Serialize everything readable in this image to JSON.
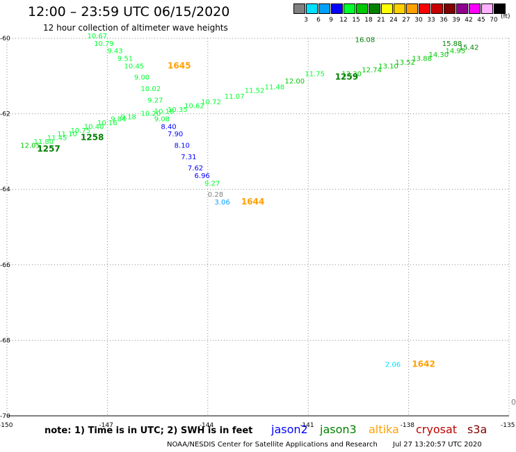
{
  "title": "12:00 – 23:59 UTC 06/15/2020",
  "subtitle": "12 hour collection of altimeter wave heights",
  "colorbar": {
    "unit": "(ft)",
    "swatches": [
      {
        "label": "",
        "color": "#808080"
      },
      {
        "label": "3",
        "color": "#00e0ff"
      },
      {
        "label": "6",
        "color": "#00a0ff"
      },
      {
        "label": "9",
        "color": "#0000ff"
      },
      {
        "label": "12",
        "color": "#00ff30"
      },
      {
        "label": "15",
        "color": "#00c800"
      },
      {
        "label": "18",
        "color": "#008000"
      },
      {
        "label": "21",
        "color": "#ffff00"
      },
      {
        "label": "24",
        "color": "#ffd000"
      },
      {
        "label": "27",
        "color": "#ffa000"
      },
      {
        "label": "30",
        "color": "#ff0000"
      },
      {
        "label": "33",
        "color": "#c80000"
      },
      {
        "label": "36",
        "color": "#800000"
      },
      {
        "label": "39",
        "color": "#900090"
      },
      {
        "label": "42",
        "color": "#ff00ff"
      },
      {
        "label": "45",
        "color": "#ffb0ff"
      },
      {
        "label": "70",
        "color": "#000000"
      }
    ]
  },
  "axes": {
    "lat_labels": [
      "-60",
      "-62",
      "-64",
      "-66",
      "-68",
      "-70"
    ],
    "lon_labels": [
      "-150",
      "-147",
      "-144",
      "-141",
      "-138",
      "-135"
    ]
  },
  "map": {
    "lon_min": -150,
    "lon_max": -135,
    "lat_min": -70,
    "lat_max": -60,
    "track_labels": [
      {
        "text": "1645",
        "color": "#ffa000",
        "lon": -145.2,
        "lat": -60.8
      },
      {
        "text": "1259",
        "color": "#008000",
        "lon": -140.2,
        "lat": -61.1
      },
      {
        "text": "1258",
        "color": "#008000",
        "lon": -147.8,
        "lat": -62.7
      },
      {
        "text": "1257",
        "color": "#008000",
        "lon": -149.1,
        "lat": -63.0
      },
      {
        "text": "1644",
        "color": "#ffa000",
        "lon": -143.0,
        "lat": -64.4
      },
      {
        "text": "1642",
        "color": "#ffa000",
        "lon": -137.9,
        "lat": -68.7
      }
    ],
    "pass_1645": [
      {
        "v": "10.67",
        "lon": -147.6,
        "lat": -60.0
      },
      {
        "v": "10.79",
        "lon": -147.4,
        "lat": -60.2
      },
      {
        "v": "9.43",
        "lon": -147.0,
        "lat": -60.4
      },
      {
        "v": "9.51",
        "lon": -146.7,
        "lat": -60.6
      },
      {
        "v": "10.45",
        "lon": -146.5,
        "lat": -60.8
      },
      {
        "v": "9.00",
        "lon": -146.2,
        "lat": -61.1
      },
      {
        "v": "10.02",
        "lon": -146.0,
        "lat": -61.4
      },
      {
        "v": "9.27",
        "lon": -145.8,
        "lat": -61.7
      },
      {
        "v": "9.08",
        "lon": -145.6,
        "lat": -62.2
      },
      {
        "v": "8.40",
        "lon": -145.4,
        "lat": -62.4
      },
      {
        "v": "7.90",
        "lon": -145.2,
        "lat": -62.6
      },
      {
        "v": "8.10",
        "lon": -145.0,
        "lat": -62.9
      },
      {
        "v": "7.31",
        "lon": -144.8,
        "lat": -63.2
      },
      {
        "v": "7.62",
        "lon": -144.6,
        "lat": -63.5
      },
      {
        "v": "6.96",
        "lon": -144.4,
        "lat": -63.7
      },
      {
        "v": "9.27",
        "lon": -144.1,
        "lat": -63.9
      },
      {
        "v": "0.28",
        "lon": -144.0,
        "lat": -64.2
      },
      {
        "v": "3.06",
        "lon": -143.8,
        "lat": -64.4
      }
    ],
    "pass_1642": [
      {
        "v": "2.06",
        "lon": -138.7,
        "lat": -68.7
      }
    ],
    "pass_jason3_upper": [
      {
        "v": "11.75",
        "lon": -141.1,
        "lat": -61.0
      },
      {
        "v": "12.00",
        "lon": -141.7,
        "lat": -61.2
      },
      {
        "v": "11.48",
        "lon": -142.3,
        "lat": -61.35
      },
      {
        "v": "11.52",
        "lon": -142.9,
        "lat": -61.45
      },
      {
        "v": "11.07",
        "lon": -143.5,
        "lat": -61.6
      },
      {
        "v": "10.72",
        "lon": -144.2,
        "lat": -61.75
      },
      {
        "v": "10.62",
        "lon": -144.7,
        "lat": -61.85
      },
      {
        "v": "10.35",
        "lon": -145.2,
        "lat": -61.95
      },
      {
        "v": "10.18",
        "lon": -145.6,
        "lat": -62.0
      },
      {
        "v": "10.20",
        "lon": -146.0,
        "lat": -62.05
      },
      {
        "v": "9.18",
        "lon": -146.6,
        "lat": -62.15
      }
    ],
    "pass_green_upper": [
      {
        "v": "16.08",
        "lon": -139.6,
        "lat": -60.1
      },
      {
        "v": "15.88",
        "lon": -137.0,
        "lat": -60.2
      },
      {
        "v": "15.42",
        "lon": -136.5,
        "lat": -60.3
      },
      {
        "v": "14.95",
        "lon": -136.9,
        "lat": -60.4
      },
      {
        "v": "14.30",
        "lon": -137.4,
        "lat": -60.5
      },
      {
        "v": "13.88",
        "lon": -137.9,
        "lat": -60.6
      },
      {
        "v": "13.52",
        "lon": -138.4,
        "lat": -60.7
      },
      {
        "v": "13.10",
        "lon": -138.9,
        "lat": -60.8
      },
      {
        "v": "12.74",
        "lon": -139.4,
        "lat": -60.9
      },
      {
        "v": "12.30",
        "lon": -140.0,
        "lat": -61.0
      }
    ],
    "pass_jason3_lower": [
      {
        "v": "9.84",
        "lon": -146.9,
        "lat": -62.2
      },
      {
        "v": "10.16",
        "lon": -147.3,
        "lat": -62.3
      },
      {
        "v": "10.40",
        "lon": -147.7,
        "lat": -62.4
      },
      {
        "v": "10.75",
        "lon": -148.1,
        "lat": -62.5
      },
      {
        "v": "11.10",
        "lon": -148.5,
        "lat": -62.6
      },
      {
        "v": "11.45",
        "lon": -148.8,
        "lat": -62.7
      },
      {
        "v": "11.80",
        "lon": -149.2,
        "lat": -62.8
      },
      {
        "v": "12.05",
        "lon": -149.6,
        "lat": -62.9
      }
    ]
  },
  "note": "note: 1) Time is in UTC; 2) SWH is in feet",
  "legend": [
    {
      "name": "jason2",
      "color": "#0000ff"
    },
    {
      "name": "jason3",
      "color": "#008000"
    },
    {
      "name": "altika",
      "color": "#ffa000"
    },
    {
      "name": "cryosat",
      "color": "#c00000"
    },
    {
      "name": "s3a",
      "color": "#800000"
    }
  ],
  "credit": "NOAA/NESDIS Center for Satellite Applications and Research",
  "stamp": "Jul 27 13:20:57 UTC 2020",
  "edge_label": "0"
}
